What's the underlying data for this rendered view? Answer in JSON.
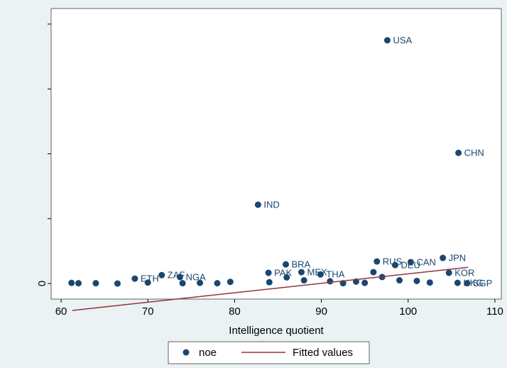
{
  "chart_data": {
    "type": "scatter",
    "x_label": "Intelligence quotient",
    "xlim": [
      58.85,
      110.74
    ],
    "ylim": [
      -4.8,
      84.8
    ],
    "xticks": [
      60,
      70,
      80,
      90,
      100,
      110
    ],
    "yticks": [
      0
    ],
    "y_unlabeled_ticks": [
      20,
      40,
      60,
      80
    ],
    "legend": "bottom",
    "series": [
      {
        "name": "noe",
        "type": "scatter",
        "color": "#1a476f",
        "x": [
          97.6,
          105.8,
          82.7,
          104.0,
          96.4,
          100.3,
          98.5,
          85.9,
          104.7,
          87.7,
          83.9,
          89.9,
          71.6,
          73.7,
          68.5,
          105.7,
          106.8,
          61.2,
          62,
          64,
          66.5,
          70,
          76,
          79.5,
          84,
          86,
          88,
          91,
          94,
          96,
          97,
          99,
          101,
          102.5,
          95,
          92.5,
          78,
          74
        ],
        "values": [
          75.0,
          40.3,
          24.3,
          7.9,
          6.8,
          6.6,
          5.7,
          5.9,
          3.3,
          3.5,
          3.3,
          2.8,
          2.6,
          2.0,
          1.5,
          0.2,
          0.1,
          0.2,
          0.1,
          0.1,
          0.0,
          0.3,
          0.2,
          0.5,
          0.4,
          1.9,
          1.0,
          0.7,
          0.6,
          3.5,
          2.0,
          1.0,
          0.8,
          0.3,
          0.2,
          0.1,
          0.1,
          0.1
        ],
        "point_labels": [
          "USA",
          "CHN",
          "IND",
          "JPN",
          "RUS",
          "CAN",
          "DEU",
          "BRA",
          "KOR",
          "MEX",
          "PAK",
          "THA",
          "ZAF",
          "NGA",
          "ETH",
          "HKG",
          "SGP",
          null,
          null,
          null,
          null,
          null,
          null,
          null,
          null,
          null,
          null,
          null,
          null,
          null,
          null,
          null,
          null,
          null,
          null,
          null,
          null,
          null
        ]
      },
      {
        "name": "Fitted values",
        "type": "line",
        "color": "#90353b",
        "x": [
          61.3,
          106.9
        ],
        "values": [
          -8.3,
          5.0
        ]
      }
    ]
  }
}
